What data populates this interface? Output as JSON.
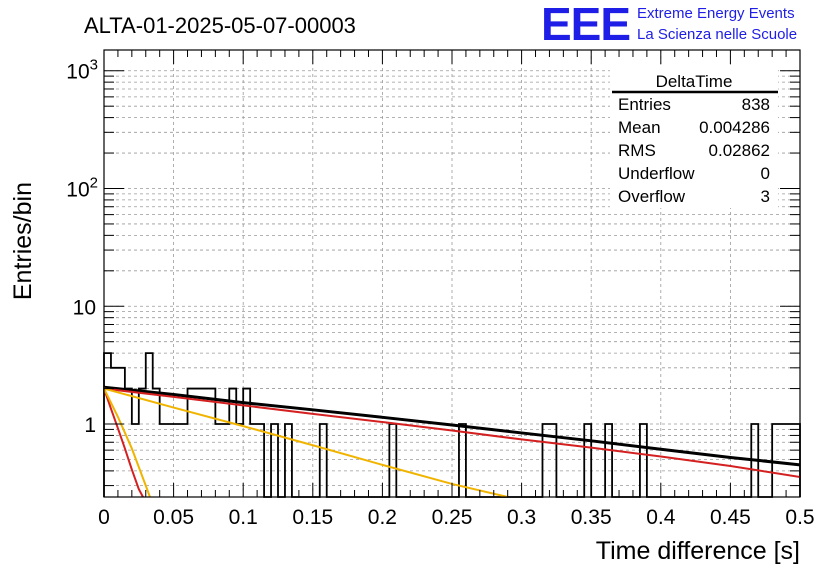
{
  "header": {
    "title": "ALTA-01-2025-05-07-00003",
    "logo_text": "EEE",
    "brand_line1": "Extreme Energy Events",
    "brand_line2": "La Scienza nelle Scuole",
    "brand_color": "#1e1ee6"
  },
  "stats": {
    "title": "DeltaTime",
    "rows": [
      {
        "label": "Entries",
        "value": "838"
      },
      {
        "label": "Mean",
        "value": "0.004286"
      },
      {
        "label": "RMS",
        "value": "0.02862"
      },
      {
        "label": "Underflow",
        "value": "0"
      },
      {
        "label": "Overflow",
        "value": "3"
      }
    ]
  },
  "chart_data": {
    "type": "bar",
    "xlabel": "Time difference [s]",
    "ylabel": "Entries/bin",
    "xlim": [
      0,
      0.5
    ],
    "ylim": [
      0.24,
      1500
    ],
    "yscale": "log",
    "grid": true,
    "bin_width": 0.005,
    "x_ticks": [
      "0",
      "0.05",
      "0.1",
      "0.15",
      "0.2",
      "0.25",
      "0.3",
      "0.35",
      "0.4",
      "0.45",
      "0.5"
    ],
    "x_tick_values": [
      0,
      0.05,
      0.1,
      0.15,
      0.2,
      0.25,
      0.3,
      0.35,
      0.4,
      0.45,
      0.5
    ],
    "y_ticks": [
      {
        "value": 1,
        "base": "1",
        "exp": ""
      },
      {
        "value": 10,
        "base": "10",
        "exp": ""
      },
      {
        "value": 100,
        "base": "10",
        "exp": "2"
      },
      {
        "value": 1000,
        "base": "10",
        "exp": "3"
      }
    ],
    "histogram": {
      "bins": [
        {
          "x": 0.0,
          "y": 4
        },
        {
          "x": 0.005,
          "y": 3
        },
        {
          "x": 0.01,
          "y": 3
        },
        {
          "x": 0.015,
          "y": 2
        },
        {
          "x": 0.02,
          "y": 1
        },
        {
          "x": 0.025,
          "y": 2
        },
        {
          "x": 0.03,
          "y": 4
        },
        {
          "x": 0.035,
          "y": 2
        },
        {
          "x": 0.04,
          "y": 1
        },
        {
          "x": 0.045,
          "y": 1
        },
        {
          "x": 0.05,
          "y": 1
        },
        {
          "x": 0.055,
          "y": 1
        },
        {
          "x": 0.06,
          "y": 2
        },
        {
          "x": 0.065,
          "y": 2
        },
        {
          "x": 0.07,
          "y": 2
        },
        {
          "x": 0.075,
          "y": 2
        },
        {
          "x": 0.08,
          "y": 1
        },
        {
          "x": 0.085,
          "y": 1
        },
        {
          "x": 0.09,
          "y": 2
        },
        {
          "x": 0.095,
          "y": 1
        },
        {
          "x": 0.1,
          "y": 2
        },
        {
          "x": 0.105,
          "y": 1
        },
        {
          "x": 0.11,
          "y": 1
        },
        {
          "x": 0.12,
          "y": 1
        },
        {
          "x": 0.13,
          "y": 1
        },
        {
          "x": 0.155,
          "y": 1
        },
        {
          "x": 0.205,
          "y": 1
        },
        {
          "x": 0.255,
          "y": 1
        },
        {
          "x": 0.315,
          "y": 1
        },
        {
          "x": 0.32,
          "y": 1
        },
        {
          "x": 0.345,
          "y": 1
        },
        {
          "x": 0.36,
          "y": 1
        },
        {
          "x": 0.385,
          "y": 1
        },
        {
          "x": 0.465,
          "y": 1
        },
        {
          "x": 0.48,
          "y": 1
        },
        {
          "x": 0.485,
          "y": 1
        },
        {
          "x": 0.49,
          "y": 1
        },
        {
          "x": 0.495,
          "y": 1
        }
      ]
    },
    "curves": [
      {
        "color": "#000000",
        "width": 3,
        "points": [
          [
            0,
            2.05
          ],
          [
            0.05,
            1.78
          ],
          [
            0.1,
            1.52
          ],
          [
            0.15,
            1.32
          ],
          [
            0.2,
            1.14
          ],
          [
            0.25,
            0.98
          ],
          [
            0.3,
            0.84
          ],
          [
            0.35,
            0.72
          ],
          [
            0.4,
            0.61
          ],
          [
            0.45,
            0.52
          ],
          [
            0.5,
            0.45
          ]
        ]
      },
      {
        "color": "#d42020",
        "width": 2,
        "points": [
          [
            0,
            2.0
          ],
          [
            0.05,
            1.7
          ],
          [
            0.1,
            1.44
          ],
          [
            0.15,
            1.22
          ],
          [
            0.2,
            1.04
          ],
          [
            0.25,
            0.88
          ],
          [
            0.3,
            0.74
          ],
          [
            0.35,
            0.63
          ],
          [
            0.4,
            0.53
          ],
          [
            0.45,
            0.44
          ],
          [
            0.5,
            0.355
          ]
        ]
      },
      {
        "color": "#d42020",
        "width": 2,
        "points": [
          [
            0,
            2.0
          ],
          [
            0.005,
            1.35
          ],
          [
            0.01,
            0.92
          ],
          [
            0.015,
            0.62
          ],
          [
            0.02,
            0.41
          ],
          [
            0.025,
            0.28
          ],
          [
            0.028,
            0.24
          ]
        ]
      },
      {
        "color": "#f0b400",
        "width": 2,
        "points": [
          [
            0,
            2.0
          ],
          [
            0.05,
            1.38
          ],
          [
            0.1,
            0.96
          ],
          [
            0.15,
            0.66
          ],
          [
            0.2,
            0.45
          ],
          [
            0.25,
            0.31
          ],
          [
            0.29,
            0.24
          ]
        ]
      },
      {
        "color": "#f0b400",
        "width": 2,
        "points": [
          [
            0,
            2.0
          ],
          [
            0.01,
            1.15
          ],
          [
            0.02,
            0.62
          ],
          [
            0.03,
            0.3
          ],
          [
            0.033,
            0.24
          ]
        ]
      }
    ]
  }
}
